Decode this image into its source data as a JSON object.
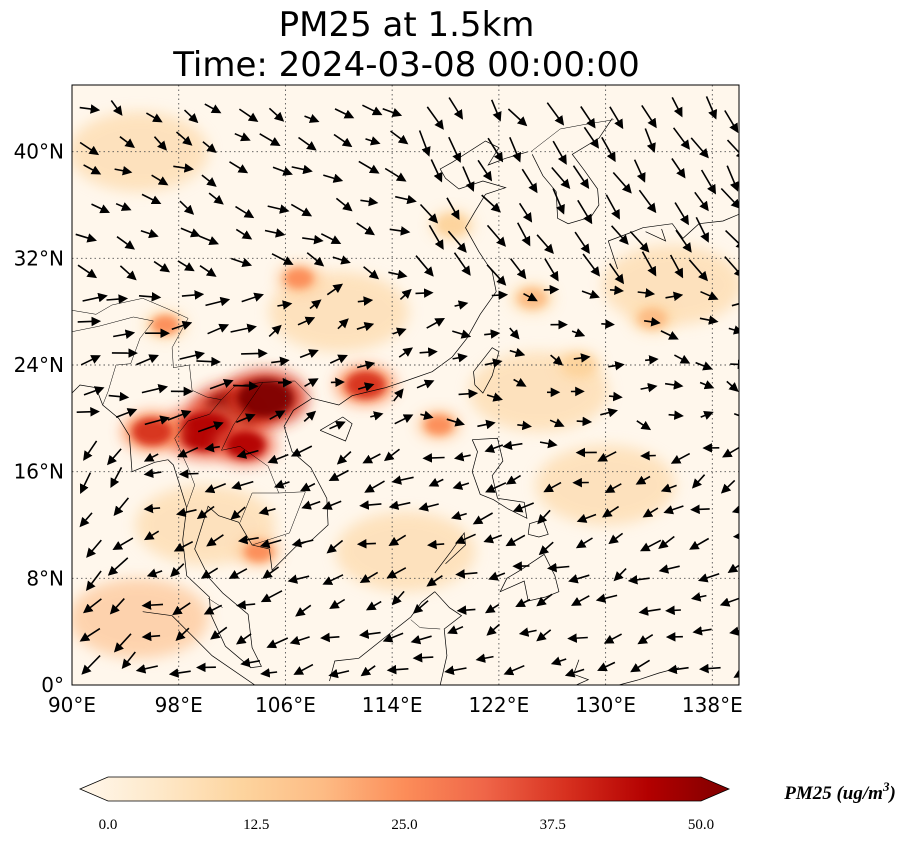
{
  "title": {
    "line1": "PM25 at 1.5km",
    "line2": "Time: 2024-03-08 00:00:00"
  },
  "map": {
    "extent": {
      "lon": [
        90,
        140
      ],
      "lat": [
        0,
        45
      ]
    },
    "lon_ticks": [
      {
        "value": 90,
        "label": "90°E"
      },
      {
        "value": 98,
        "label": "98°E"
      },
      {
        "value": 106,
        "label": "106°E"
      },
      {
        "value": 114,
        "label": "114°E"
      },
      {
        "value": 122,
        "label": "122°E"
      },
      {
        "value": 130,
        "label": "130°E"
      },
      {
        "value": 138,
        "label": "138°E"
      }
    ],
    "lat_ticks": [
      {
        "value": 0,
        "label": "0°"
      },
      {
        "value": 8,
        "label": "8°N"
      },
      {
        "value": 16,
        "label": "16°N"
      },
      {
        "value": 24,
        "label": "24°N"
      },
      {
        "value": 32,
        "label": "32°N"
      },
      {
        "value": 40,
        "label": "40°N"
      }
    ],
    "gridlines": true,
    "colormap": "OrRd",
    "high_pm25_regions": [
      {
        "lon": 102.0,
        "lat": 20.5,
        "value": 50
      },
      {
        "lon": 104.5,
        "lat": 21.5,
        "value": 50
      },
      {
        "lon": 100.0,
        "lat": 19.0,
        "value": 45
      },
      {
        "lon": 103.0,
        "lat": 18.0,
        "value": 42
      },
      {
        "lon": 96.0,
        "lat": 19.0,
        "value": 35
      },
      {
        "lon": 112.0,
        "lat": 22.5,
        "value": 35
      },
      {
        "lon": 117.5,
        "lat": 19.5,
        "value": 28
      },
      {
        "lon": 107.0,
        "lat": 30.5,
        "value": 25
      },
      {
        "lon": 97.0,
        "lat": 27.0,
        "value": 22
      },
      {
        "lon": 104.0,
        "lat": 10.0,
        "value": 25
      },
      {
        "lon": 124.5,
        "lat": 29.0,
        "value": 18
      },
      {
        "lon": 133.5,
        "lat": 27.5,
        "value": 20
      },
      {
        "lon": 118.5,
        "lat": 34.5,
        "value": 15
      },
      {
        "lon": 128.0,
        "lat": 24.0,
        "value": 15
      }
    ]
  },
  "colorbar": {
    "min": 0,
    "max": 50,
    "ticks": [
      "0.0",
      "12.5",
      "25.0",
      "37.5",
      "50.0"
    ],
    "label": "PM25 (ug/m",
    "label_superscript": "3",
    "label_close": ")",
    "colors": [
      "#fff7ec",
      "#fee8c8",
      "#fdd49e",
      "#fdbb84",
      "#fc8d59",
      "#ef6548",
      "#d7301f",
      "#b30000",
      "#7f0000"
    ]
  }
}
